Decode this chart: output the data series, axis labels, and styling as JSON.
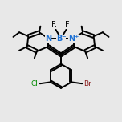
{
  "bg_color": "#e8e8e8",
  "bond_color": "#000000",
  "N_color": "#1a6fd4",
  "B_color": "#1a6fd4",
  "F_color": "#000000",
  "Cl_color": "#008800",
  "Br_color": "#8b2020",
  "line_width": 1.4,
  "dbo": 0.055,
  "xlim": [
    -2.0,
    2.0
  ],
  "ylim": [
    -1.8,
    1.4
  ]
}
